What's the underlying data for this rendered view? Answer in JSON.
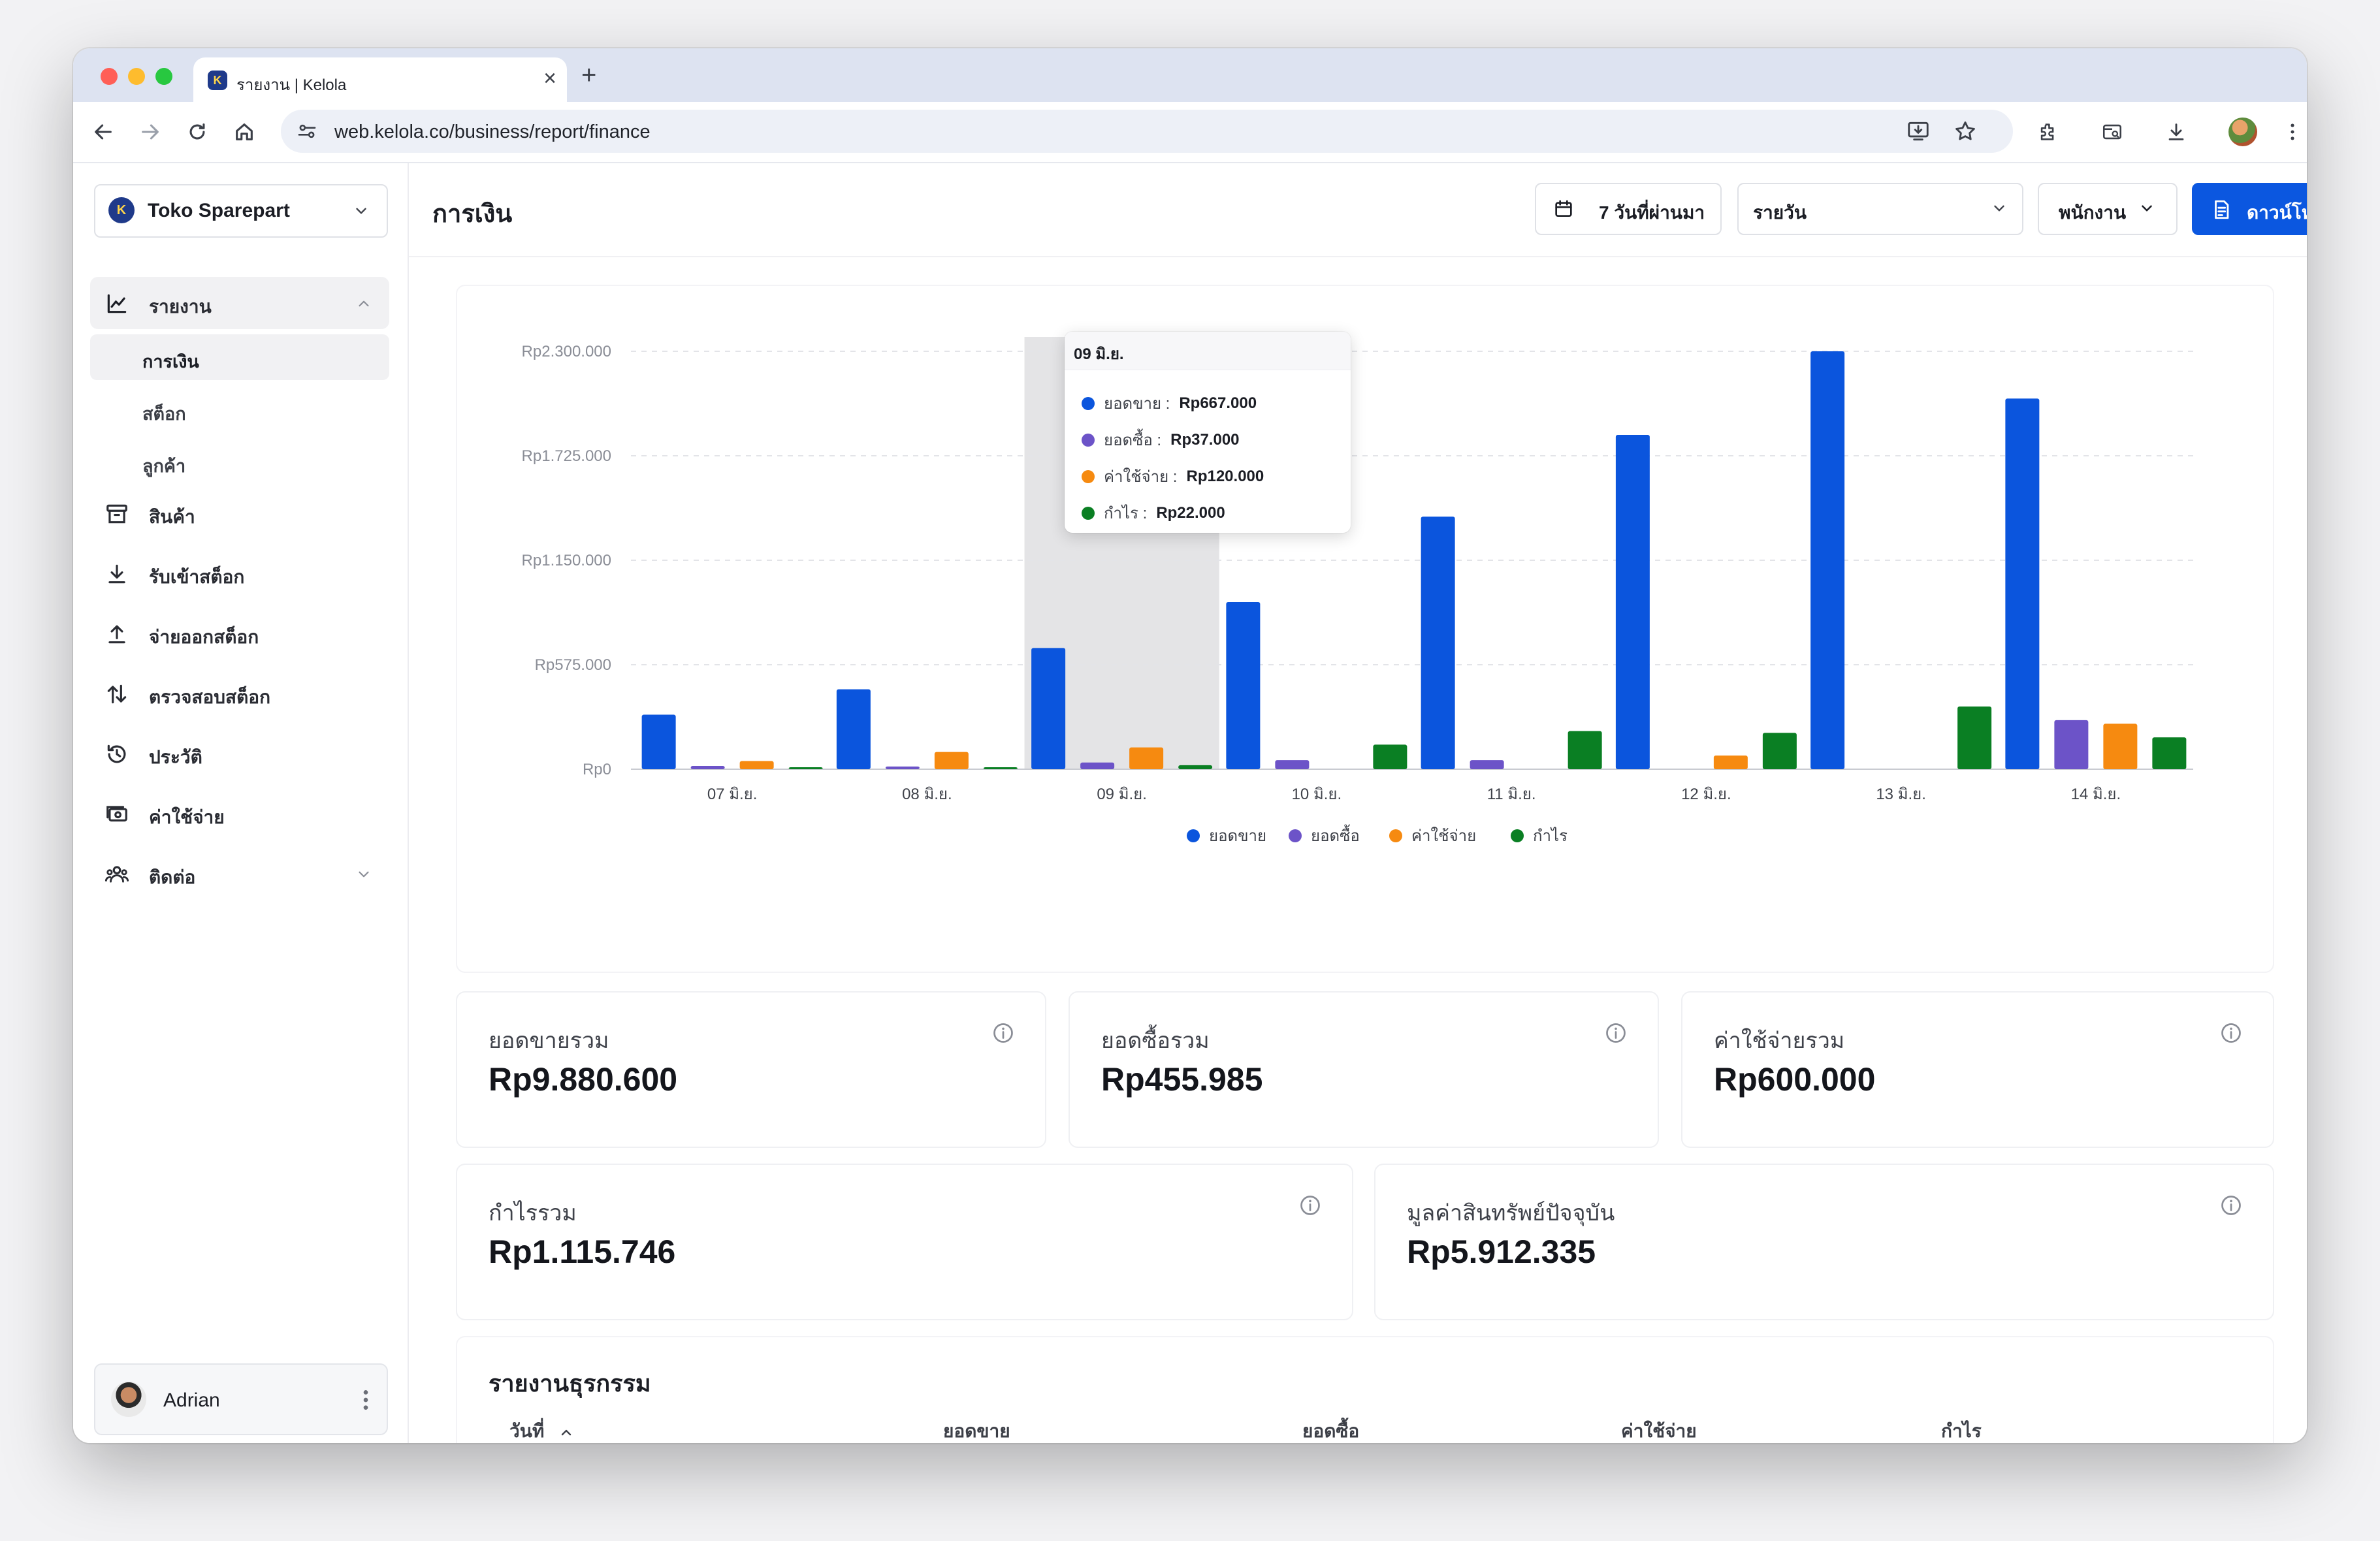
{
  "browser": {
    "tab_title": "รายงาน | Kelola",
    "url": "web.kelola.co/business/report/finance"
  },
  "sidebar": {
    "store_name": "Toko Sparepart",
    "nav": {
      "report": "รายงาน",
      "report_sub": [
        "การเงิน",
        "สต็อก",
        "ลูกค้า"
      ],
      "products": "สินค้า",
      "stock_in": "รับเข้าสต็อก",
      "stock_out": "จ่ายออกสต็อก",
      "stock_audit": "ตรวจสอบสต็อก",
      "history": "ประวัติ",
      "expenses": "ค่าใช้จ่าย",
      "contacts": "ติดต่อ"
    },
    "user_name": "Adrian"
  },
  "header": {
    "title": "การเงิน",
    "date_range": "7 วันที่ผ่านมา",
    "interval": "รายวัน",
    "staff": "พนักงาน",
    "download": "ดาวน์โหลด"
  },
  "colors": {
    "sales": "#0b55dd",
    "purchases": "#6c53c8",
    "expenses": "#f68a10",
    "profit": "#0a7f23"
  },
  "chart_data": {
    "type": "bar",
    "categories": [
      "07 มิ.ย.",
      "08 มิ.ย.",
      "09 มิ.ย.",
      "10 มิ.ย.",
      "11 มิ.ย.",
      "12 มิ.ย.",
      "13 มิ.ย.",
      "14 มิ.ย."
    ],
    "y_ticks": [
      "Rp0",
      "Rp575.000",
      "Rp1.150.000",
      "Rp1.725.000",
      "Rp2.300.000"
    ],
    "ylim": [
      0,
      2300000
    ],
    "grid": true,
    "legend_position": "bottom",
    "highlighted_category": "09 มิ.ย.",
    "series": [
      {
        "name": "ยอดขาย",
        "values": [
          300000,
          440000,
          667000,
          920000,
          1390000,
          1840000,
          2300000,
          2040000
        ]
      },
      {
        "name": "ยอดซื้อ",
        "values": [
          18000,
          15000,
          37000,
          50000,
          50000,
          0,
          0,
          270000
        ]
      },
      {
        "name": "ค่าใช้จ่าย",
        "values": [
          45000,
          95000,
          120000,
          0,
          0,
          75000,
          0,
          250000
        ]
      },
      {
        "name": "กำไร",
        "values": [
          8000,
          6000,
          22000,
          135000,
          210000,
          200000,
          345000,
          175000
        ]
      }
    ]
  },
  "tooltip": {
    "title": "09 มิ.ย.",
    "rows": [
      {
        "label": "ยอดขาย :",
        "value": "Rp667.000"
      },
      {
        "label": "ยอดซื้อ :",
        "value": "Rp37.000"
      },
      {
        "label": "ค่าใช้จ่าย :",
        "value": "Rp120.000"
      },
      {
        "label": "กำไร :",
        "value": "Rp22.000"
      }
    ]
  },
  "stats": [
    {
      "label": "ยอดขายรวม",
      "value": "Rp9.880.600"
    },
    {
      "label": "ยอดซื้อรวม",
      "value": "Rp455.985"
    },
    {
      "label": "ค่าใช้จ่ายรวม",
      "value": "Rp600.000"
    },
    {
      "label": "กำไรรวม",
      "value": "Rp1.115.746"
    },
    {
      "label": "มูลค่าสินทรัพย์ปัจจุบัน",
      "value": "Rp5.912.335"
    }
  ],
  "transactions": {
    "title": "รายงานธุรกรรม",
    "columns": [
      "วันที่",
      "ยอดขาย",
      "ยอดซื้อ",
      "ค่าใช้จ่าย",
      "กำไร"
    ]
  }
}
